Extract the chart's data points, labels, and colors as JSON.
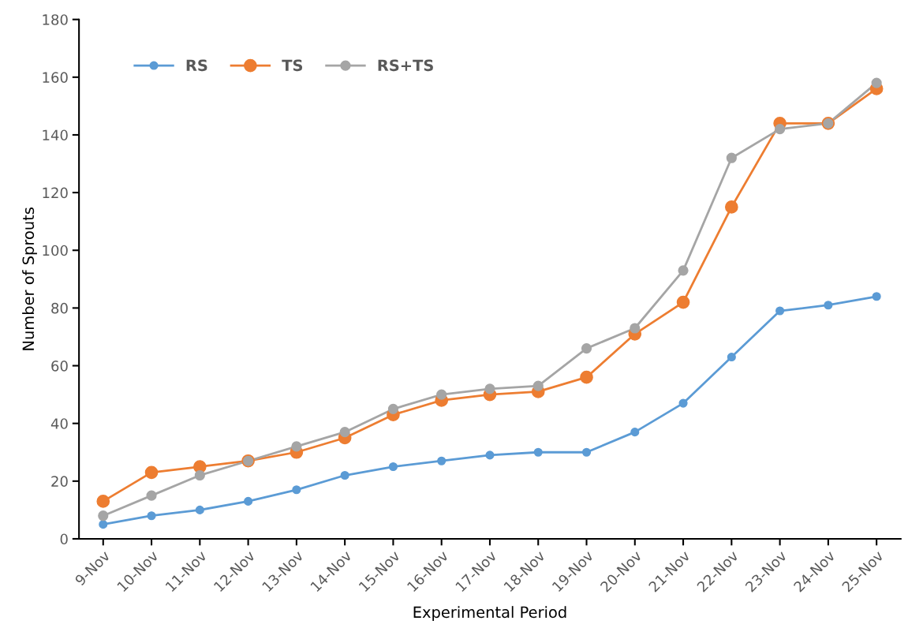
{
  "chart_data": {
    "type": "line",
    "xlabel": "Experimental Period",
    "ylabel": "Number of Sprouts",
    "categories": [
      "9-Nov",
      "10-Nov",
      "11-Nov",
      "12-Nov",
      "13-Nov",
      "14-Nov",
      "15-Nov",
      "16-Nov",
      "17-Nov",
      "18-Nov",
      "19-Nov",
      "20-Nov",
      "21-Nov",
      "22-Nov",
      "23-Nov",
      "24-Nov",
      "25-Nov"
    ],
    "series": [
      {
        "name": "RS",
        "color": "#5b9bd5",
        "values": [
          5,
          8,
          10,
          13,
          17,
          22,
          25,
          27,
          29,
          30,
          30,
          37,
          47,
          63,
          79,
          81,
          84
        ]
      },
      {
        "name": "TS",
        "color": "#ed7d31",
        "values": [
          13,
          23,
          25,
          27,
          30,
          35,
          43,
          48,
          50,
          51,
          56,
          71,
          82,
          115,
          144,
          144,
          156
        ]
      },
      {
        "name": "RS+TS",
        "color": "#a5a5a5",
        "values": [
          8,
          15,
          22,
          27,
          32,
          37,
          45,
          50,
          52,
          53,
          66,
          73,
          93,
          132,
          142,
          144,
          158
        ]
      }
    ],
    "ylim": [
      0,
      180
    ],
    "yticks": [
      0,
      20,
      40,
      60,
      80,
      100,
      120,
      140,
      160,
      180
    ],
    "grid": false,
    "legend": "top",
    "marker": "circle",
    "line_style": "solid"
  }
}
